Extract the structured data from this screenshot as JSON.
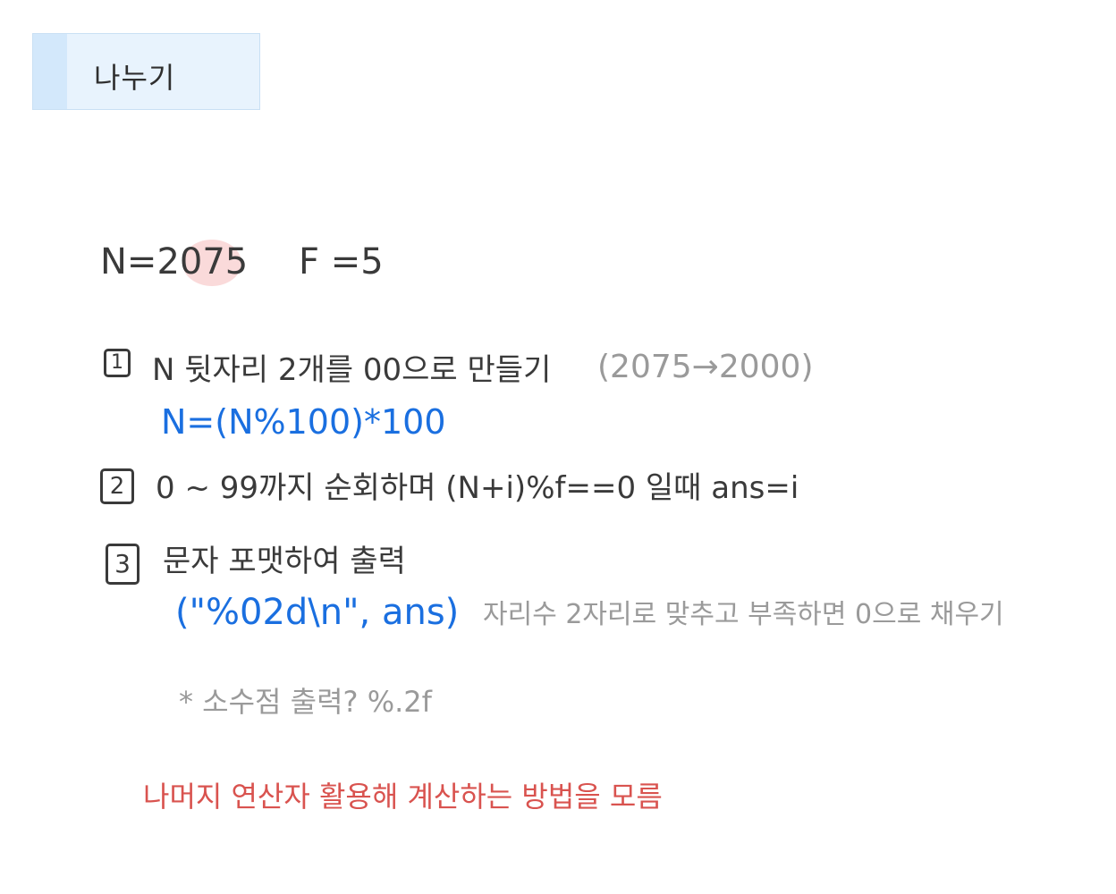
{
  "title": "나누기",
  "given": {
    "n": "N=2075",
    "f": "F =5"
  },
  "colors": {
    "text": "#3a3a3a",
    "code_blue": "#1a6fe0",
    "note_gray": "#9a9a9a",
    "summary_red": "#d9534f",
    "title_bg": "#e8f3fd",
    "highlight": "#f9d4d4"
  },
  "steps": [
    {
      "number": "1",
      "text": "N 뒷자리 2개를 00으로 만들기",
      "note": "(2075→2000)",
      "code": "N=(N%100)*100"
    },
    {
      "number": "2",
      "text": "0 ~ 99까지 순회하며  (N+i)%f==0 일때  ans=i"
    },
    {
      "number": "3",
      "text": "문자 포맷하여 출력",
      "code": "(\"%02d\\n\", ans)",
      "note": "자리수 2자리로 맞추고 부족하면 0으로 채우기"
    }
  ],
  "decimal_note": "* 소수점 출력?   %.2f",
  "summary": "나머지 연산자 활용해 계산하는 방법을 모름"
}
